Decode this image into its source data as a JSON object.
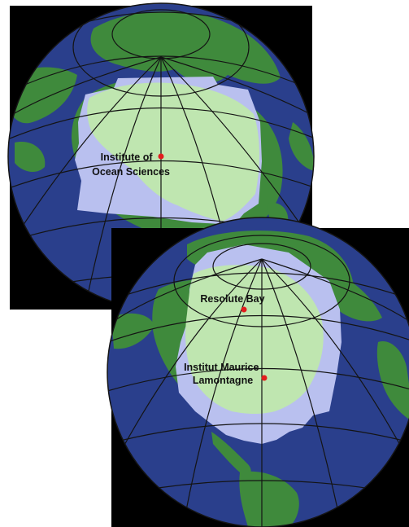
{
  "maps": [
    {
      "id": "west",
      "sites": [
        {
          "label_lines": [
            "Institute of",
            "Ocean Sciences"
          ]
        }
      ]
    },
    {
      "id": "east",
      "sites": [
        {
          "label_lines": [
            "Resolute Bay"
          ]
        },
        {
          "label_lines": [
            "Institut Maurice",
            "Lamontagne"
          ]
        }
      ]
    }
  ],
  "colors": {
    "background": "#000000",
    "ocean": "#2a3f8c",
    "land": "#3f8a3c",
    "coverage_over_ocean": "#b9c0ef",
    "coverage_over_land": "#bfe6b0",
    "graticule": "#141414",
    "site_marker": "#e21d1d",
    "label": "#111111"
  }
}
